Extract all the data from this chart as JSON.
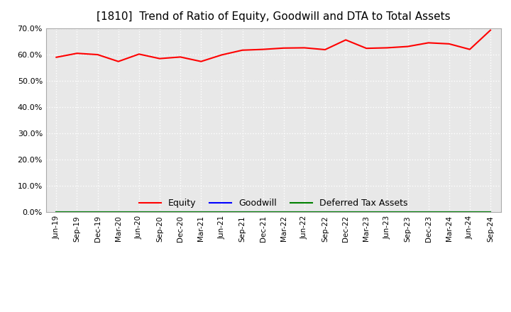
{
  "title": "[1810]  Trend of Ratio of Equity, Goodwill and DTA to Total Assets",
  "x_labels": [
    "Jun-19",
    "Sep-19",
    "Dec-19",
    "Mar-20",
    "Jun-20",
    "Sep-20",
    "Dec-20",
    "Mar-21",
    "Jun-21",
    "Sep-21",
    "Dec-21",
    "Mar-22",
    "Jun-22",
    "Sep-22",
    "Dec-22",
    "Mar-23",
    "Jun-23",
    "Sep-23",
    "Dec-23",
    "Mar-24",
    "Jun-24",
    "Sep-24"
  ],
  "equity": [
    0.589,
    0.604,
    0.599,
    0.573,
    0.601,
    0.584,
    0.59,
    0.573,
    0.598,
    0.616,
    0.619,
    0.624,
    0.625,
    0.618,
    0.655,
    0.623,
    0.625,
    0.63,
    0.644,
    0.64,
    0.619,
    0.692
  ],
  "goodwill": [
    0.0,
    0.0,
    0.0,
    0.0,
    0.0,
    0.0,
    0.0,
    0.0,
    0.0,
    0.0,
    0.0,
    0.0,
    0.0,
    0.0,
    0.0,
    0.0,
    0.0,
    0.0,
    0.0,
    0.0,
    0.0,
    0.0
  ],
  "dta": [
    0.0,
    0.0,
    0.0,
    0.0,
    0.0,
    0.0,
    0.0,
    0.0,
    0.0,
    0.0,
    0.0,
    0.0,
    0.0,
    0.0,
    0.0,
    0.0,
    0.0,
    0.0,
    0.0,
    0.0,
    0.0,
    0.0
  ],
  "equity_color": "#ff0000",
  "goodwill_color": "#0000ff",
  "dta_color": "#008000",
  "ylim": [
    0.0,
    0.7
  ],
  "yticks": [
    0.0,
    0.1,
    0.2,
    0.3,
    0.4,
    0.5,
    0.6,
    0.7
  ],
  "background_color": "#ffffff",
  "plot_bg_color": "#e8e8e8",
  "grid_color": "#ffffff",
  "title_fontsize": 11,
  "legend_labels": [
    "Equity",
    "Goodwill",
    "Deferred Tax Assets"
  ]
}
